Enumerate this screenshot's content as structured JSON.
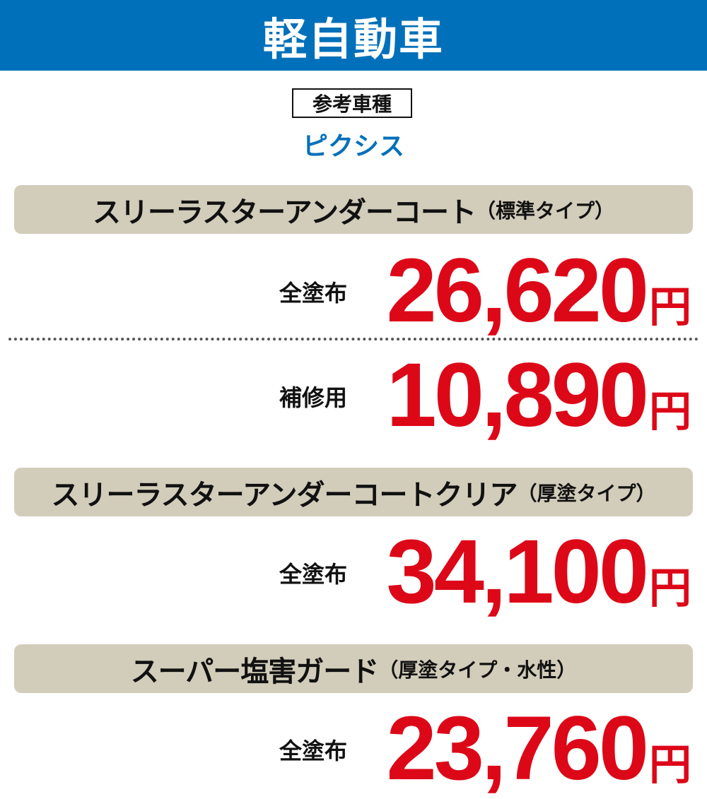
{
  "header": {
    "title": "軽自動車"
  },
  "reference": {
    "label": "参考車種",
    "model": "ピクシス"
  },
  "colors": {
    "header_blue": "#0070BA",
    "price_red": "#DC0818",
    "bar_beige": "#D2CCBA"
  },
  "sections": [
    {
      "title": "スリーラスターアンダーコート",
      "subtitle": "（標準タイプ）",
      "prices": [
        {
          "label": "全塗布",
          "amount": "26,620",
          "unit": "円"
        },
        {
          "label": "補修用",
          "amount": "10,890",
          "unit": "円"
        }
      ]
    },
    {
      "title": "スリーラスターアンダーコートクリア",
      "subtitle": "（厚塗タイプ）",
      "prices": [
        {
          "label": "全塗布",
          "amount": "34,100",
          "unit": "円"
        }
      ]
    },
    {
      "title": "スーパー塩害ガード",
      "subtitle": "（厚塗タイプ・水性）",
      "prices": [
        {
          "label": "全塗布",
          "amount": "23,760",
          "unit": "円"
        }
      ]
    }
  ]
}
